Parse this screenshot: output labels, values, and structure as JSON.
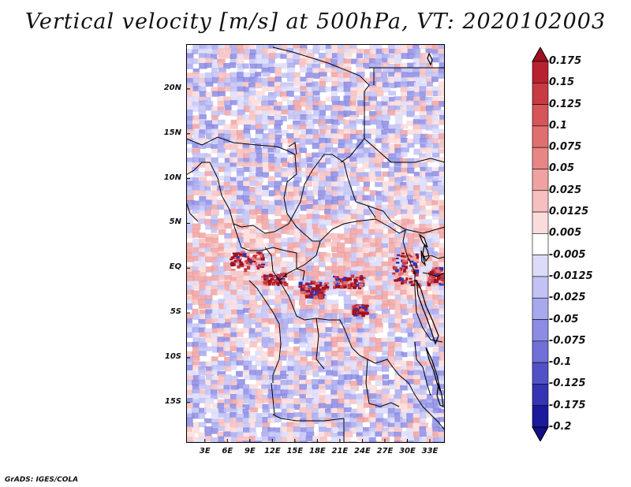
{
  "title": "Vertical velocity [m/s] at 500hPa, VT: 2020102003",
  "footer": "GrADS: IGES/COLA",
  "map": {
    "lat_labels": [
      "20N",
      "15N",
      "10N",
      "5N",
      "EQ",
      "5S",
      "10S",
      "15S"
    ],
    "lon_labels": [
      "3E",
      "6E",
      "9E",
      "12E",
      "15E",
      "18E",
      "21E",
      "24E",
      "27E",
      "30E",
      "33E"
    ],
    "lat_values": [
      20,
      15,
      10,
      5,
      0,
      -5,
      -10,
      -15
    ],
    "lon_values": [
      3,
      6,
      9,
      12,
      15,
      18,
      21,
      24,
      27,
      30,
      33
    ],
    "lon_range": [
      0.5,
      35
    ],
    "lat_range": [
      -19.5,
      25
    ]
  },
  "colorbar": {
    "labels": [
      "0.175",
      "0.15",
      "0.125",
      "0.1",
      "0.075",
      "0.05",
      "0.025",
      "0.0125",
      "0.005",
      "-0.005",
      "-0.0125",
      "-0.025",
      "-0.05",
      "-0.075",
      "-0.1",
      "-0.125",
      "-0.175",
      "-0.2"
    ],
    "colors": [
      "#a01020",
      "#b82230",
      "#c83a44",
      "#d5555a",
      "#e06f70",
      "#e88686",
      "#f0a2a2",
      "#f6c0c0",
      "#fbdcdc",
      "#ffffff",
      "#dcdcfa",
      "#c2c2f4",
      "#a8a8ee",
      "#8c8ce4",
      "#7070d8",
      "#5252c8",
      "#3434b4",
      "#1a1a9c",
      "#10108a"
    ]
  }
}
